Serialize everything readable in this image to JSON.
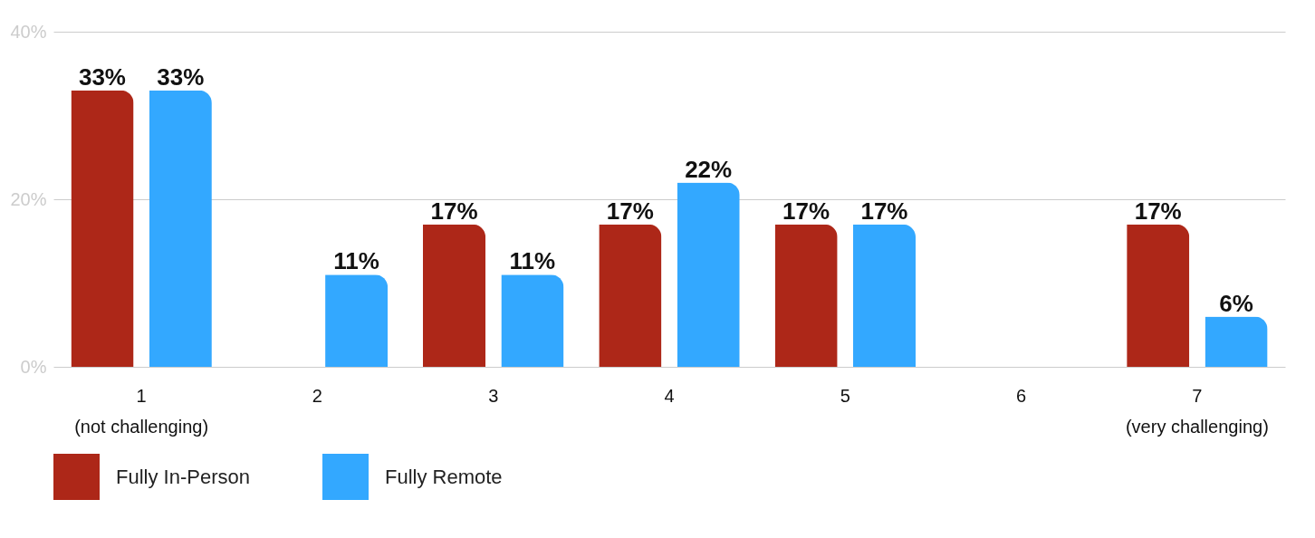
{
  "chart_data": {
    "type": "bar",
    "categories": [
      "1\n(not challenging)",
      "2",
      "3",
      "4",
      "5",
      "6",
      "7\n(very challenging)"
    ],
    "series": [
      {
        "name": "Fully In-Person",
        "color": "#ad2718",
        "values": [
          33,
          null,
          17,
          17,
          17,
          null,
          17
        ],
        "value_labels": [
          "33%",
          null,
          "17%",
          "17%",
          "17%",
          null,
          "17%"
        ]
      },
      {
        "name": "Fully Remote",
        "color": "#33a8ff",
        "values": [
          33,
          11,
          11,
          22,
          17,
          null,
          6
        ],
        "value_labels": [
          "33%",
          "11%",
          "11%",
          "22%",
          "17%",
          null,
          "6%"
        ]
      }
    ],
    "ylim": [
      0,
      40
    ],
    "yticks": [
      {
        "value": 0,
        "label": "0%"
      },
      {
        "value": 20,
        "label": "20%"
      },
      {
        "value": 40,
        "label": "40%"
      }
    ],
    "grid": "y",
    "legend": "bottom"
  }
}
